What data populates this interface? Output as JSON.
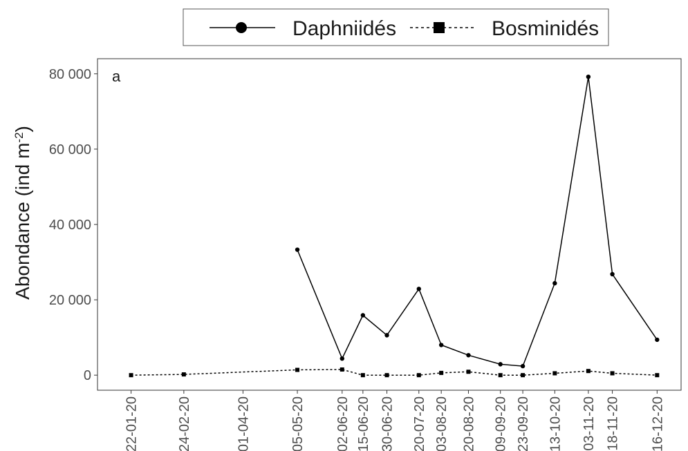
{
  "chart_data": {
    "type": "line",
    "panel_label": "a",
    "ylabel": "Abondance (ind m",
    "ylabel_sup": "-2",
    "ylabel_close": ")",
    "ylim": [
      -4000,
      84000
    ],
    "yticks": [
      0,
      20000,
      40000,
      60000,
      80000
    ],
    "ytick_labels": [
      "0",
      "20 000",
      "40 000",
      "60 000",
      "80 000"
    ],
    "x_dates": [
      "2020-01-22",
      "2020-02-24",
      "2020-04-01",
      "2020-05-05",
      "2020-06-02",
      "2020-06-15",
      "2020-06-30",
      "2020-07-20",
      "2020-08-03",
      "2020-08-20",
      "2020-09-09",
      "2020-09-23",
      "2020-10-13",
      "2020-11-03",
      "2020-11-18",
      "2020-12-16"
    ],
    "x_labels": [
      "22-01-20",
      "24-02-20",
      "01-04-20",
      "05-05-20",
      "02-06-20",
      "15-06-20",
      "30-06-20",
      "20-07-20",
      "03-08-20",
      "20-08-20",
      "09-09-20",
      "23-09-20",
      "13-10-20",
      "03-11-20",
      "18-11-20",
      "16-12-20"
    ],
    "xlim": [
      "2020-01-01",
      "2020-12-31"
    ],
    "legend_position": "top",
    "grid": false,
    "series": [
      {
        "name": "Daphniidés",
        "marker": "circle",
        "line": "solid",
        "color": "#000000",
        "values": [
          null,
          null,
          null,
          33300,
          4400,
          15900,
          10600,
          22900,
          8000,
          5300,
          2900,
          2400,
          24400,
          79200,
          26800,
          9400
        ]
      },
      {
        "name": "Bosminidés",
        "marker": "square",
        "line": "dashed",
        "color": "#000000",
        "values": [
          0,
          200,
          null,
          1400,
          1500,
          0,
          0,
          0,
          600,
          900,
          0,
          0,
          500,
          1100,
          500,
          0
        ]
      }
    ]
  }
}
